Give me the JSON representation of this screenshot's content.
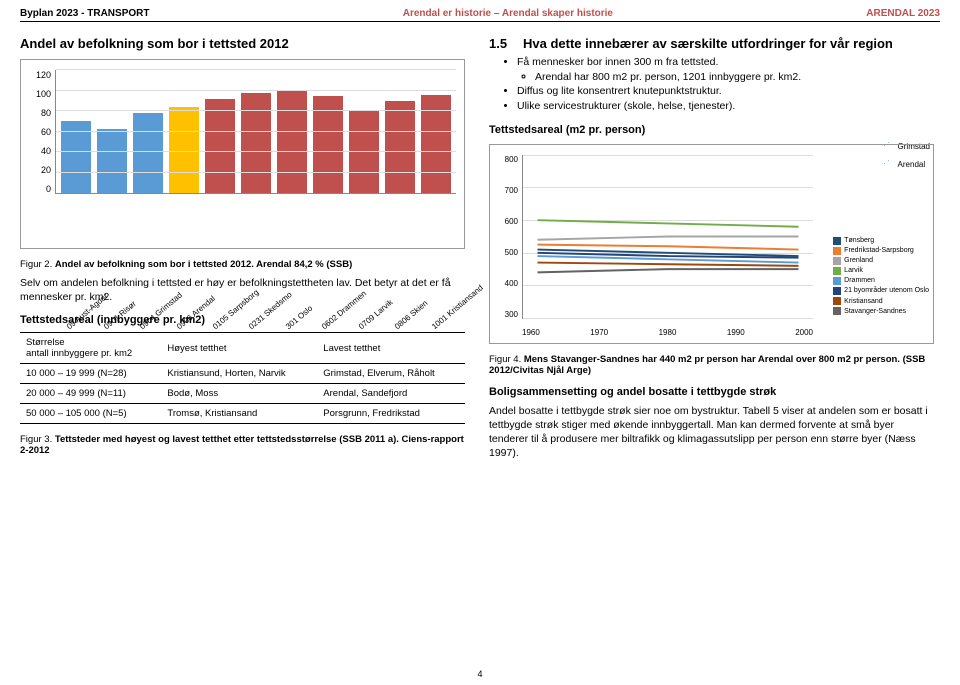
{
  "header": {
    "left": "Byplan 2023 - TRANSPORT",
    "mid": "Arendal er historie – Arendal skaper historie",
    "right": "ARENDAL 2023"
  },
  "barChart": {
    "type": "bar",
    "title": "Andel av befolkning som bor i tettsted 2012",
    "ymin": 0,
    "ymax": 120,
    "ystep": 20,
    "yticks": [
      "0",
      "20",
      "40",
      "60",
      "80",
      "100",
      "120"
    ],
    "categories": [
      "09 Aust-Agder",
      "0901 Risør",
      "0904 Grimstad",
      "0906 Arendal",
      "0105 Sarpsborg",
      "0231 Skedsmo",
      "301 Oslo",
      "0602 Drammen",
      "0709 Larvik",
      "0806 Skien",
      "1001 Kristiansand"
    ],
    "values": [
      70,
      62,
      78,
      84,
      92,
      98,
      100,
      95,
      80,
      90,
      96
    ],
    "bar_colors": [
      "#5b9bd5",
      "#5b9bd5",
      "#5b9bd5",
      "#ffc000",
      "#c0504d",
      "#c0504d",
      "#c0504d",
      "#c0504d",
      "#c0504d",
      "#c0504d",
      "#c0504d"
    ],
    "background": "#ffffff",
    "grid_color": "#dddddd"
  },
  "fig2": {
    "label": "Figur 2.",
    "text": "Andel av befolkning som bor i tettsted 2012. Arendal 84,2 % (SSB)"
  },
  "para1": "Selv om andelen befolkning i tettsted er høy er befolkningstettheten lav. Det betyr at det er få mennesker pr. km2.",
  "subheading1": "Tettstedsareal (innbyggere pr. km2)",
  "table": {
    "headers": [
      "Størrelse\nantall innbyggere pr. km2",
      "Høyest tetthet",
      "Lavest tetthet"
    ],
    "rows": [
      [
        "10 000 – 19 999 (N=28)",
        "Kristiansund, Horten, Narvik",
        "Grimstad, Elverum, Råholt"
      ],
      [
        "20 000 – 49 999 (N=11)",
        "Bodø, Moss",
        "Arendal, Sandefjord"
      ],
      [
        "50 000 – 105 000 (N=5)",
        "Tromsø, Kristiansand",
        "Porsgrunn, Fredrikstad"
      ]
    ]
  },
  "fig3": {
    "label": "Figur 3.",
    "text": "Tettsteder med høyest og lavest tetthet etter tettstedsstørrelse (SSB 2011 a). Ciens-rapport 2-2012"
  },
  "section15": {
    "num": "1.5",
    "title": "Hva dette innebærer av særskilte utfordringer for vår region"
  },
  "bullets": {
    "b1": "Få mennesker bor innen 300 m fra tettsted.",
    "b1a": "Arendal har 800 m2 pr. person, 1201 innbyggere pr. km2.",
    "b2": "Diffus og lite konsentrert knutepunktstruktur.",
    "b3": "Ulike servicestrukturer (skole, helse, tjenester)."
  },
  "subheading2": "Tettstedsareal (m2 pr. person)",
  "stars": {
    "s1": "Grimstad",
    "s2": "Arendal"
  },
  "lineChart": {
    "type": "line",
    "ymin": 300,
    "ymax": 800,
    "ystep": 100,
    "yticks": [
      "800",
      "700",
      "600",
      "500",
      "400",
      "300"
    ],
    "xticks": [
      "1960",
      "1970",
      "1980",
      "1990",
      "2000"
    ],
    "legend": [
      {
        "label": "Tønsberg",
        "color": "#1f4e79"
      },
      {
        "label": "Fredrikstad-Sarpsborg",
        "color": "#ed7d31"
      },
      {
        "label": "Grenland",
        "color": "#a5a5a5"
      },
      {
        "label": "Larvik",
        "color": "#70ad47"
      },
      {
        "label": "Drammen",
        "color": "#5b9bd5"
      },
      {
        "label": "21 byområder utenom Oslo",
        "color": "#264478"
      },
      {
        "label": "Kristiansand",
        "color": "#9e480e"
      },
      {
        "label": "Stavanger-Sandnes",
        "color": "#636363"
      }
    ],
    "grid_color": "#dddddd",
    "background": "#ffffff"
  },
  "fig4": {
    "label": "Figur 4.",
    "text": "Mens Stavanger-Sandnes har 440 m2 pr person har Arendal over 800 m2 pr person. (SSB 2012/Civitas Njål Arge)"
  },
  "subheading3": "Boligsammensetting og andel bosatte i tettbygde strøk",
  "para2": "Andel bosatte i tettbygde strøk sier noe om bystruktur. Tabell 5 viser at andelen som er bosatt i tettbygde strøk stiger med økende innbyggertall. Man kan dermed forvente at små byer tenderer til å produsere mer biltrafikk og klimagassutslipp per person enn større byer (Næss 1997).",
  "pageNumber": "4"
}
